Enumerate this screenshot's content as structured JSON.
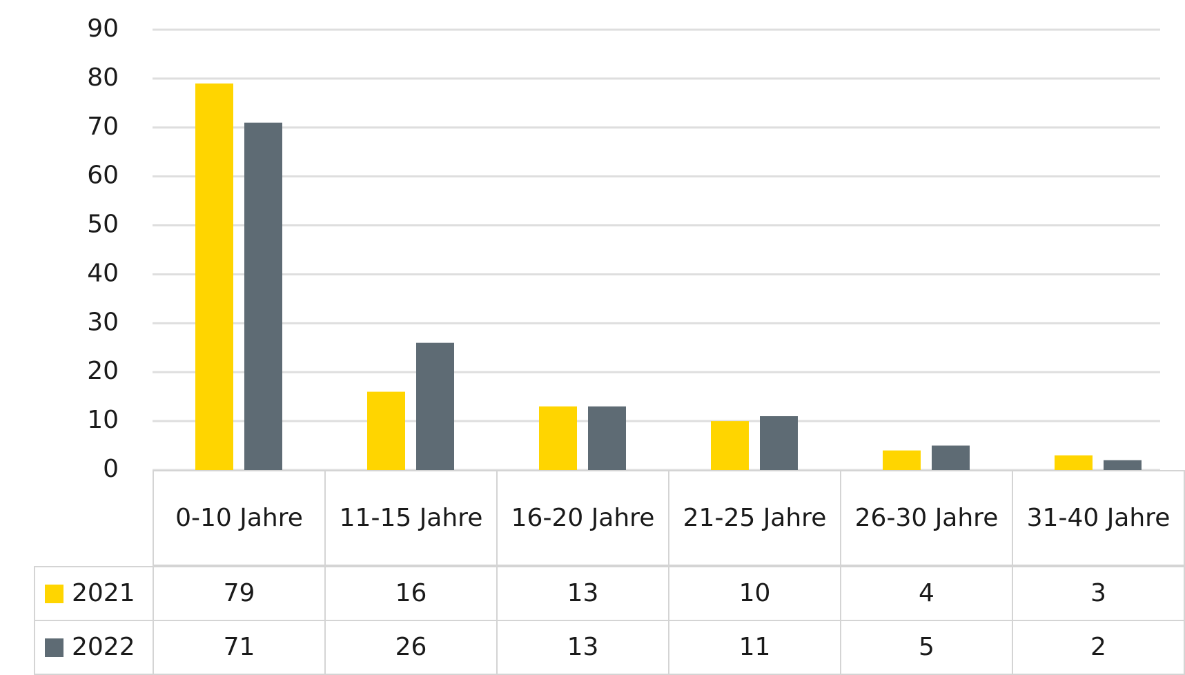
{
  "chart_data": {
    "type": "bar",
    "categories": [
      "0-10 Jahre",
      "11-15 Jahre",
      "16-20 Jahre",
      "21-25 Jahre",
      "26-30 Jahre",
      "31-40 Jahre"
    ],
    "series": [
      {
        "name": "2021",
        "color": "#ffd500",
        "values": [
          79,
          16,
          13,
          10,
          4,
          3
        ]
      },
      {
        "name": "2022",
        "color": "#5e6b74",
        "values": [
          71,
          26,
          13,
          11,
          5,
          2
        ]
      }
    ],
    "ylim": [
      0,
      90
    ],
    "yticks": [
      0,
      10,
      20,
      30,
      40,
      50,
      60,
      70,
      80,
      90
    ],
    "grid": true
  }
}
